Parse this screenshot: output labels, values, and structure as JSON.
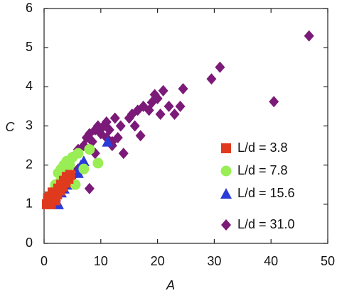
{
  "chart_data": {
    "type": "scatter",
    "x_label": "A",
    "y_label": "C",
    "xlim": [
      0,
      50
    ],
    "ylim": [
      0,
      6
    ],
    "xticks": [
      0,
      10,
      20,
      30,
      40,
      50
    ],
    "yticks": [
      0,
      1,
      2,
      3,
      4,
      5,
      6
    ],
    "series": [
      {
        "name": "L/d = 3.8",
        "color": "#e03a1e",
        "marker": "square",
        "x": [
          0.5,
          0.8,
          1,
          1.2,
          1.5,
          1.8,
          2,
          2.3,
          2.5,
          2.8,
          3,
          3.2,
          3.5,
          3.8,
          4,
          4.3,
          4.6,
          1,
          1.5,
          2,
          0.7
        ],
        "values": [
          1,
          1.05,
          1.1,
          1,
          1.15,
          1.2,
          1.3,
          1.25,
          1.4,
          1.35,
          1.5,
          1.45,
          1.6,
          1.55,
          1.7,
          1.65,
          1.75,
          1.2,
          1.3,
          1.1,
          1.15
        ]
      },
      {
        "name": "L/d = 7.8",
        "color": "#99ee55",
        "marker": "circle",
        "x": [
          1,
          2,
          2.5,
          3,
          3.5,
          4,
          4.5,
          5,
          6,
          7,
          8,
          9.5,
          4,
          5.5,
          3,
          2
        ],
        "values": [
          1.2,
          1.5,
          1.8,
          1.9,
          2,
          2.1,
          2,
          2.2,
          2.3,
          1.9,
          2.4,
          2.05,
          1.7,
          1.5,
          1.6,
          1.4
        ]
      },
      {
        "name": "L/d = 15.6",
        "color": "#2b3bd8",
        "marker": "triangle",
        "x": [
          1.5,
          2,
          3,
          4,
          5,
          6,
          6.5,
          7,
          11.2,
          3.5,
          2.5
        ],
        "values": [
          1.1,
          1.2,
          1.3,
          1.5,
          1.6,
          1.8,
          2,
          2.1,
          2.6,
          1.4,
          1
        ]
      },
      {
        "name": "L/d = 31.0",
        "color": "#7b1a78",
        "marker": "diamond",
        "x": [
          2,
          3,
          4,
          5,
          6,
          7,
          7.5,
          8,
          8.5,
          9,
          9.5,
          10,
          10.5,
          11,
          11.5,
          12,
          12.5,
          13,
          13.5,
          15,
          15.5,
          16,
          17,
          17.5,
          18.5,
          19,
          19.5,
          20.5,
          21,
          22,
          23,
          24.5,
          24,
          29.5,
          31,
          40.5,
          46.7,
          8,
          14,
          12,
          6,
          5,
          9,
          11,
          16.5,
          20
        ],
        "values": [
          1.5,
          1.8,
          2,
          2.2,
          2.4,
          2.5,
          2.7,
          2.8,
          2.6,
          2.9,
          3,
          2.8,
          3,
          3.1,
          2.9,
          2.6,
          3.2,
          2.7,
          3,
          3.2,
          3.3,
          3,
          2.75,
          3.5,
          3.4,
          3.6,
          3.8,
          3.3,
          3.9,
          3.5,
          3.3,
          3.95,
          3.5,
          4.2,
          4.5,
          3.62,
          5.3,
          1.4,
          2.3,
          2.5,
          1.9,
          1.7,
          2.3,
          2.7,
          3.4,
          3.7
        ]
      }
    ]
  }
}
